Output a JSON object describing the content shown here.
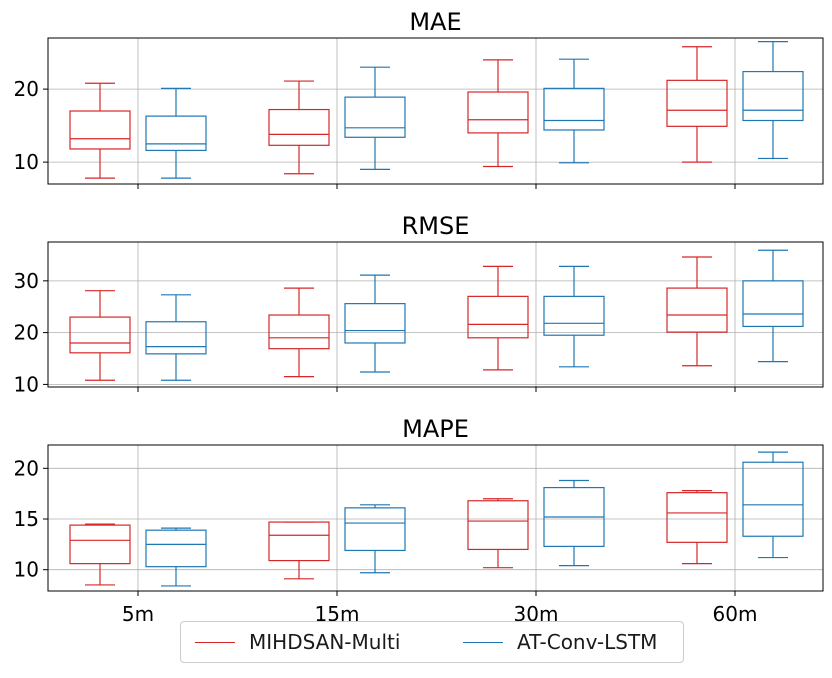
{
  "chart_data": {
    "type": "boxplot",
    "categories": [
      "5m",
      "15m",
      "30m",
      "60m"
    ],
    "series_colors": {
      "MIHDSAN-Multi": "#d62728",
      "AT-Conv-LSTM": "#1f77b4"
    },
    "legend": {
      "position": "bottom-center",
      "entries": [
        "MIHDSAN-Multi",
        "AT-Conv-LSTM"
      ]
    },
    "grid": true,
    "panels": [
      {
        "title": "MAE",
        "ylim": [
          7,
          27
        ],
        "yticks": [
          10,
          20
        ],
        "series": [
          {
            "name": "MIHDSAN-Multi",
            "boxes": [
              {
                "whislo": 7.8,
                "q1": 11.8,
                "med": 13.2,
                "q3": 17.0,
                "whishi": 20.8
              },
              {
                "whislo": 8.4,
                "q1": 12.3,
                "med": 13.8,
                "q3": 17.2,
                "whishi": 21.1
              },
              {
                "whislo": 9.4,
                "q1": 14.0,
                "med": 15.8,
                "q3": 19.6,
                "whishi": 24.0
              },
              {
                "whislo": 10.0,
                "q1": 14.9,
                "med": 17.1,
                "q3": 21.2,
                "whishi": 25.8
              }
            ]
          },
          {
            "name": "AT-Conv-LSTM",
            "boxes": [
              {
                "whislo": 7.8,
                "q1": 11.6,
                "med": 12.5,
                "q3": 16.3,
                "whishi": 20.1
              },
              {
                "whislo": 9.0,
                "q1": 13.4,
                "med": 14.7,
                "q3": 18.9,
                "whishi": 23.0
              },
              {
                "whislo": 9.9,
                "q1": 14.4,
                "med": 15.7,
                "q3": 20.1,
                "whishi": 24.1
              },
              {
                "whislo": 10.5,
                "q1": 15.7,
                "med": 17.1,
                "q3": 22.4,
                "whishi": 26.5
              }
            ]
          }
        ]
      },
      {
        "title": "RMSE",
        "ylim": [
          9.5,
          37.5
        ],
        "yticks": [
          10,
          20,
          30
        ],
        "series": [
          {
            "name": "MIHDSAN-Multi",
            "boxes": [
              {
                "whislo": 10.8,
                "q1": 16.1,
                "med": 18.0,
                "q3": 23.0,
                "whishi": 28.1
              },
              {
                "whislo": 11.5,
                "q1": 16.9,
                "med": 19.0,
                "q3": 23.4,
                "whishi": 28.6
              },
              {
                "whislo": 12.8,
                "q1": 19.0,
                "med": 21.6,
                "q3": 27.0,
                "whishi": 32.8
              },
              {
                "whislo": 13.6,
                "q1": 20.1,
                "med": 23.4,
                "q3": 28.6,
                "whishi": 34.6
              }
            ]
          },
          {
            "name": "AT-Conv-LSTM",
            "boxes": [
              {
                "whislo": 10.8,
                "q1": 15.9,
                "med": 17.3,
                "q3": 22.1,
                "whishi": 27.3
              },
              {
                "whislo": 12.4,
                "q1": 18.0,
                "med": 20.4,
                "q3": 25.6,
                "whishi": 31.1
              },
              {
                "whislo": 13.4,
                "q1": 19.5,
                "med": 21.8,
                "q3": 27.0,
                "whishi": 32.8
              },
              {
                "whislo": 14.4,
                "q1": 21.2,
                "med": 23.6,
                "q3": 30.0,
                "whishi": 35.9
              }
            ]
          }
        ]
      },
      {
        "title": "MAPE",
        "ylim": [
          7.9,
          22.3
        ],
        "yticks": [
          10,
          15,
          20
        ],
        "series": [
          {
            "name": "MIHDSAN-Multi",
            "boxes": [
              {
                "whislo": 8.5,
                "q1": 10.6,
                "med": 12.9,
                "q3": 14.4,
                "whishi": 14.5
              },
              {
                "whislo": 9.1,
                "q1": 10.9,
                "med": 13.4,
                "q3": 14.7,
                "whishi": 14.7
              },
              {
                "whislo": 10.2,
                "q1": 12.0,
                "med": 14.8,
                "q3": 16.8,
                "whishi": 17.0
              },
              {
                "whislo": 10.6,
                "q1": 12.7,
                "med": 15.6,
                "q3": 17.6,
                "whishi": 17.8
              }
            ]
          },
          {
            "name": "AT-Conv-LSTM",
            "boxes": [
              {
                "whislo": 8.4,
                "q1": 10.3,
                "med": 12.5,
                "q3": 13.9,
                "whishi": 14.1
              },
              {
                "whislo": 9.7,
                "q1": 11.9,
                "med": 14.6,
                "q3": 16.1,
                "whishi": 16.4
              },
              {
                "whislo": 10.4,
                "q1": 12.3,
                "med": 15.2,
                "q3": 18.1,
                "whishi": 18.8
              },
              {
                "whislo": 11.2,
                "q1": 13.3,
                "med": 16.4,
                "q3": 20.6,
                "whishi": 21.6
              }
            ]
          }
        ]
      }
    ]
  }
}
